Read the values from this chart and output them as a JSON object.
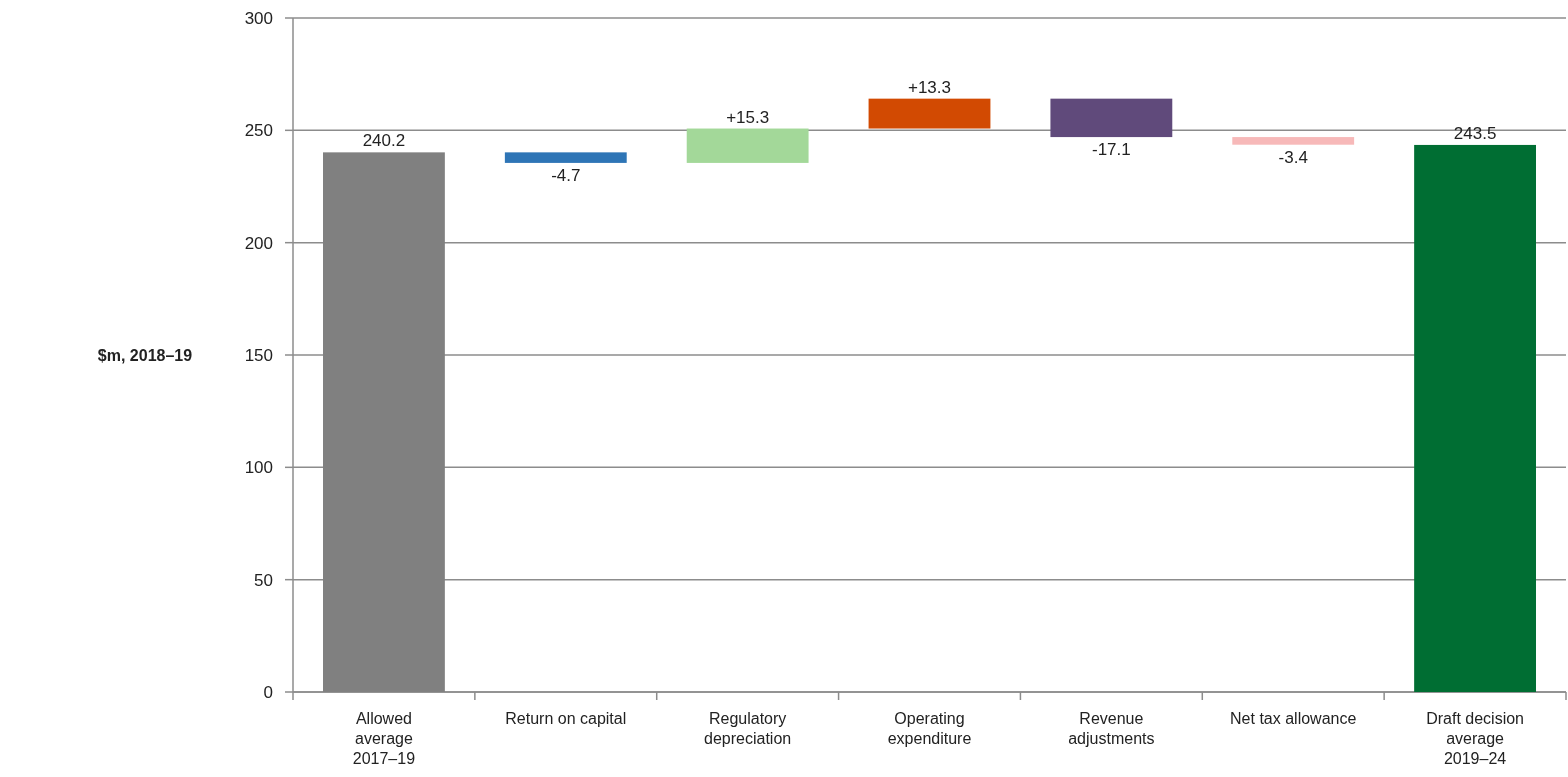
{
  "chart_data": {
    "type": "bar",
    "ylabel": "$m, 2018–19",
    "categories": [
      "Allowed\naverage\n2017–19",
      "Return on capital",
      "Regulatory\ndepreciation",
      "Operating\nexpenditure",
      "Revenue\nadjustments",
      "Net tax allowance",
      "Draft decision\naverage\n2019–24"
    ],
    "values": [
      240.2,
      -4.7,
      15.3,
      13.3,
      -17.1,
      -3.4,
      243.5
    ],
    "base": [
      0,
      240.2,
      235.5,
      250.8,
      264.1,
      247.0,
      0
    ],
    "value_labels": [
      "240.2",
      "-4.7",
      "+15.3",
      "+13.3",
      "-17.1",
      "-3.4",
      "243.5"
    ],
    "colors": [
      "#808080",
      "#2e75b6",
      "#a3d899",
      "#d24a02",
      "#604a7b",
      "#f7b9b9",
      "#006e33"
    ],
    "ylim": [
      0,
      300
    ],
    "yticks": [
      0,
      50,
      100,
      150,
      200,
      250,
      300
    ],
    "grid": "y"
  }
}
